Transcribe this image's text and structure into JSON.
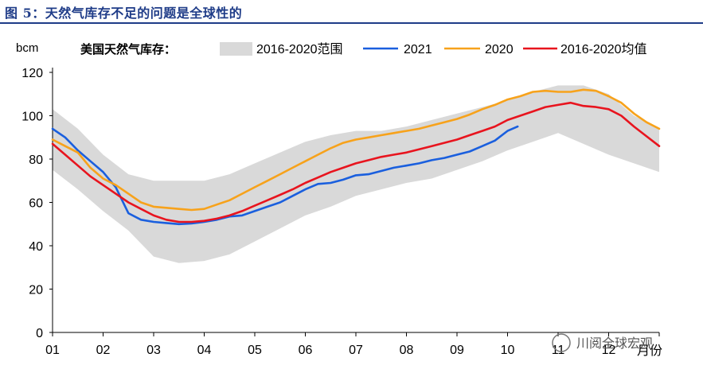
{
  "figure": {
    "title": "图 5：天然气库存不足的问题是全球性的",
    "watermark": "川阅全球宏观"
  },
  "chart_data": {
    "type": "line",
    "title": "",
    "ylabel": "bcm",
    "xlabel": "",
    "x_axis_note": "月份",
    "ylim": [
      0,
      120
    ],
    "yticks": [
      0,
      20,
      40,
      60,
      80,
      100,
      120
    ],
    "xlim": [
      1,
      13
    ],
    "xtick_labels": [
      "01",
      "02",
      "03",
      "04",
      "05",
      "06",
      "07",
      "08",
      "09",
      "10",
      "11",
      "12"
    ],
    "legend_title": "美国天然气库存：",
    "legend_position": "top",
    "grid": false,
    "band": {
      "name": "2016-2020范围",
      "color": "#d9d9d9",
      "x": [
        1.0,
        1.5,
        2.0,
        2.5,
        3.0,
        3.5,
        4.0,
        4.5,
        5.0,
        5.5,
        6.0,
        6.5,
        7.0,
        7.5,
        8.0,
        8.5,
        9.0,
        9.5,
        10.0,
        10.5,
        11.0,
        11.5,
        12.0,
        12.5,
        13.0
      ],
      "upper": [
        103,
        94,
        82,
        73,
        70,
        70,
        70,
        73,
        78,
        83,
        88,
        91,
        93,
        93,
        95,
        98,
        101,
        104,
        107,
        111,
        114,
        114,
        110,
        100,
        94
      ],
      "lower": [
        75,
        66,
        56,
        47,
        35,
        32,
        33,
        36,
        42,
        48,
        54,
        58,
        63,
        66,
        69,
        71,
        75,
        79,
        84,
        88,
        92,
        87,
        82,
        78,
        74
      ]
    },
    "series": [
      {
        "name": "2021",
        "color": "#1a5fde",
        "x": [
          1.0,
          1.25,
          1.5,
          1.75,
          2.0,
          2.25,
          2.5,
          2.75,
          3.0,
          3.25,
          3.5,
          3.75,
          4.0,
          4.25,
          4.5,
          4.75,
          5.0,
          5.25,
          5.5,
          5.75,
          6.0,
          6.25,
          6.5,
          6.75,
          7.0,
          7.25,
          7.5,
          7.75,
          8.0,
          8.25,
          8.5,
          8.75,
          9.0,
          9.25,
          9.5,
          9.75,
          10.0,
          10.2
        ],
        "values": [
          94,
          90,
          84,
          79,
          74,
          67,
          55,
          52,
          51,
          50.5,
          50,
          50.3,
          51,
          52,
          53.5,
          54,
          56,
          58,
          60,
          63,
          66,
          68.5,
          69,
          70.5,
          72.5,
          73,
          74.5,
          76,
          77,
          78,
          79.5,
          80.5,
          82,
          83.5,
          86,
          88.5,
          93,
          95
        ]
      },
      {
        "name": "2020",
        "color": "#f7a21b",
        "x": [
          1.0,
          1.25,
          1.5,
          1.75,
          2.0,
          2.25,
          2.5,
          2.75,
          3.0,
          3.25,
          3.5,
          3.75,
          4.0,
          4.25,
          4.5,
          4.75,
          5.0,
          5.25,
          5.5,
          5.75,
          6.0,
          6.25,
          6.5,
          6.75,
          7.0,
          7.25,
          7.5,
          7.75,
          8.0,
          8.25,
          8.5,
          8.75,
          9.0,
          9.25,
          9.5,
          9.75,
          10.0,
          10.25,
          10.5,
          10.75,
          11.0,
          11.25,
          11.5,
          11.75,
          12.0,
          12.25,
          12.5,
          12.75,
          13.0
        ],
        "values": [
          89,
          86,
          83,
          76,
          71,
          68,
          64,
          60,
          58,
          57.5,
          57,
          56.5,
          57,
          59,
          61,
          64,
          67,
          70,
          73,
          76,
          79,
          82,
          85,
          87.5,
          89,
          90,
          91,
          92,
          93,
          94,
          95.5,
          97,
          98.5,
          100.5,
          103,
          105,
          107.5,
          109,
          111,
          111.5,
          111,
          111,
          112,
          111.5,
          109,
          106,
          101,
          97,
          94
        ]
      },
      {
        "name": "2016-2020均值",
        "color": "#e8141e",
        "x": [
          1.0,
          1.25,
          1.5,
          1.75,
          2.0,
          2.25,
          2.5,
          2.75,
          3.0,
          3.25,
          3.5,
          3.75,
          4.0,
          4.25,
          4.5,
          4.75,
          5.0,
          5.25,
          5.5,
          5.75,
          6.0,
          6.25,
          6.5,
          6.75,
          7.0,
          7.25,
          7.5,
          7.75,
          8.0,
          8.25,
          8.5,
          8.75,
          9.0,
          9.25,
          9.5,
          9.75,
          10.0,
          10.25,
          10.5,
          10.75,
          11.0,
          11.25,
          11.5,
          11.75,
          12.0,
          12.25,
          12.5,
          12.75,
          13.0
        ],
        "values": [
          87,
          82,
          77,
          72,
          68,
          64,
          60,
          57,
          54,
          52,
          51,
          51,
          51.5,
          52.5,
          54,
          56,
          58.5,
          61,
          63.5,
          66,
          69,
          71.5,
          74,
          76,
          78,
          79.5,
          81,
          82,
          83,
          84.5,
          86,
          87.5,
          89,
          91,
          93,
          95,
          98,
          100,
          102,
          104,
          105,
          106,
          104.5,
          104,
          103,
          100,
          95,
          90.5,
          86
        ]
      }
    ]
  }
}
